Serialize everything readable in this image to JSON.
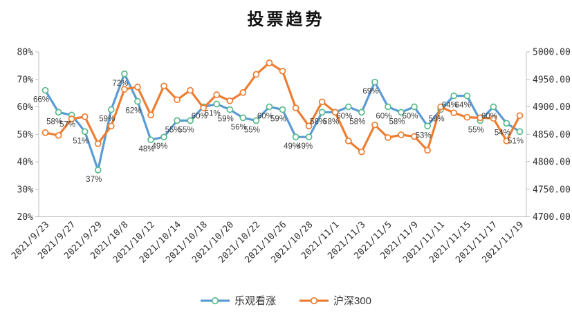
{
  "title": "投票趋势",
  "chart_data": {
    "type": "line",
    "title": "投票趋势",
    "num_points": 37,
    "x_tick_step": 2,
    "x_tick_labels": [
      "2021/9/23",
      "2021/9/27",
      "2021/9/29",
      "2021/10/8",
      "2021/10/12",
      "2021/10/14",
      "2021/10/18",
      "2021/10/20",
      "2021/10/22",
      "2021/10/26",
      "2021/10/28",
      "2021/11/1",
      "2021/11/3",
      "2021/11/5",
      "2021/11/9",
      "2021/11/11",
      "2021/11/15",
      "2021/11/17",
      "2021/11/19"
    ],
    "left_axis": {
      "min": 20,
      "max": 80,
      "ticks": [
        "80%",
        "70%",
        "60%",
        "50%",
        "40%",
        "30%",
        "20%"
      ]
    },
    "right_axis": {
      "min": 4700,
      "max": 5000,
      "ticks": [
        "5000.00",
        "4950.00",
        "4900.00",
        "4850.00",
        "4800.00",
        "4750.00",
        "4700.00"
      ]
    },
    "grid": false,
    "legend_position": "bottom",
    "series": [
      {
        "name": "乐观看涨",
        "axis": "left",
        "color": "#5B9BD5",
        "marker_outline": "#57BB8A",
        "marker_fill": "#FFFFFF",
        "values": [
          66,
          58,
          57,
          51,
          37,
          59,
          72,
          62,
          48,
          49,
          55,
          55,
          60,
          61,
          59,
          56,
          55,
          60,
          59,
          49,
          49,
          58,
          58,
          60,
          58,
          69,
          60,
          58,
          60,
          53,
          59,
          64,
          64,
          55,
          60,
          54,
          51
        ],
        "data_labels": [
          "66%",
          "58%",
          "57%",
          "51%",
          "37%",
          "59%",
          "72%",
          "62%",
          "48%",
          "49%",
          "55%",
          "55%",
          "60%",
          "61%",
          "59%",
          "56%",
          "55%",
          "60%",
          "59%",
          "49%",
          "49%",
          "58%",
          "58%",
          "60%",
          "58%",
          "69%",
          "60%",
          "58%",
          "60%",
          "53%",
          "59%",
          "64%",
          "64%",
          "55%",
          "60%",
          "54%",
          "51%"
        ]
      },
      {
        "name": "沪深300",
        "axis": "right",
        "color": "#ED7D31",
        "marker_outline": "#ED7D31",
        "marker_fill": "#FFFFFF",
        "values": [
          4853,
          4848,
          4878,
          4882,
          4833,
          4865,
          4932,
          4936,
          4885,
          4938,
          4913,
          4930,
          4898,
          4922,
          4911,
          4926,
          4959,
          4980,
          4965,
          4898,
          4865,
          4909,
          4890,
          4838,
          4818,
          4867,
          4844,
          4849,
          4846,
          4821,
          4900,
          4889,
          4881,
          4880,
          4879,
          4838,
          4884
        ],
        "data_labels": null
      }
    ],
    "colors": {
      "axis_line": "#BFBFBF",
      "tick_text": "#303030",
      "data_label_text": "#3d3d3d"
    }
  }
}
